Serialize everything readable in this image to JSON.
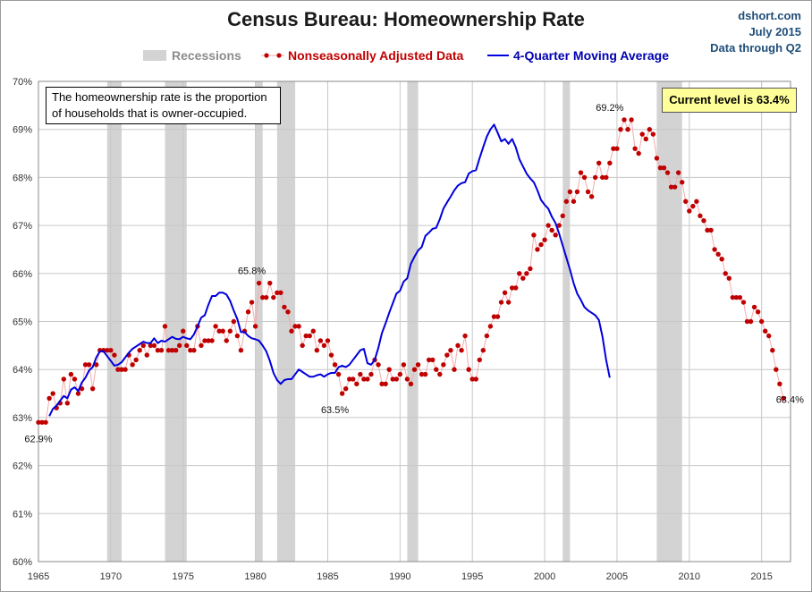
{
  "header": {
    "title": "Census Bureau: Homeownership Rate",
    "source_line1": "dshort.com",
    "source_line2": "July 2015",
    "source_line3": "Data through Q2"
  },
  "legend": {
    "recessions": "Recessions",
    "series_nsa": "Nonseasonally Adjusted Data",
    "series_ma": "4-Quarter Moving Average"
  },
  "annotations": {
    "definition_line1": "The homeownership rate is the proportion",
    "definition_line2": "of households that is owner-occupied.",
    "current_level": "Current level is 63.4%",
    "labels": [
      {
        "text": "62.9%",
        "x": 1965.0,
        "y": 62.9,
        "pos": "below"
      },
      {
        "text": "65.8%",
        "x": 1979.75,
        "y": 65.8,
        "pos": "above"
      },
      {
        "text": "63.5%",
        "x": 1985.5,
        "y": 63.5,
        "pos": "below"
      },
      {
        "text": "69.2%",
        "x": 2004.5,
        "y": 69.2,
        "pos": "above"
      },
      {
        "text": "63.4%",
        "x": 2015.25,
        "y": 63.4,
        "pos": "right"
      }
    ]
  },
  "colors": {
    "nsa": "#c00000",
    "nsa_line": "#f4aaaa",
    "ma": "#0000dd",
    "recession": "#d3d3d3",
    "grid": "#c8c8c8",
    "annotation_bg": "#ffff99",
    "source_text": "#1f4e79"
  },
  "chart_data": {
    "type": "line",
    "title": "Census Bureau: Homeownership Rate",
    "xlabel": "",
    "ylabel": "",
    "xlim": [
      1965,
      2017
    ],
    "ylim": [
      60,
      70
    ],
    "x_ticks": [
      "1965",
      "1970",
      "1975",
      "1980",
      "1985",
      "1990",
      "1995",
      "2000",
      "2005",
      "2010",
      "2015"
    ],
    "y_ticks": [
      "60%",
      "61%",
      "62%",
      "63%",
      "64%",
      "65%",
      "66%",
      "67%",
      "68%",
      "69%",
      "70%"
    ],
    "grid": "both",
    "legend_position": "top",
    "recessions": [
      [
        1969.75,
        1970.75
      ],
      [
        1973.75,
        1975.25
      ],
      [
        1980.0,
        1980.5
      ],
      [
        1981.5,
        1982.75
      ],
      [
        1990.5,
        1991.25
      ],
      [
        2001.25,
        2001.75
      ],
      [
        2007.75,
        2009.5
      ]
    ],
    "series": [
      {
        "name": "Nonseasonally Adjusted Data",
        "start": 1965.0,
        "step": 0.25,
        "values": [
          62.9,
          62.9,
          62.9,
          63.4,
          63.5,
          63.2,
          63.3,
          63.8,
          63.3,
          63.9,
          63.8,
          63.5,
          63.6,
          64.1,
          64.1,
          63.6,
          64.1,
          64.4,
          64.4,
          64.4,
          64.4,
          64.3,
          64.0,
          64.0,
          64.0,
          64.3,
          64.1,
          64.2,
          64.4,
          64.5,
          64.3,
          64.5,
          64.5,
          64.4,
          64.4,
          64.9,
          64.4,
          64.4,
          64.4,
          64.5,
          64.8,
          64.5,
          64.4,
          64.4,
          64.9,
          64.5,
          64.6,
          64.6,
          64.6,
          64.9,
          64.8,
          64.8,
          64.6,
          64.8,
          65.0,
          64.7,
          64.4,
          64.8,
          65.2,
          65.4,
          64.9,
          65.8,
          65.5,
          65.5,
          65.8,
          65.5,
          65.6,
          65.6,
          65.3,
          65.2,
          64.8,
          64.9,
          64.9,
          64.5,
          64.7,
          64.7,
          64.8,
          64.4,
          64.6,
          64.5,
          64.6,
          64.3,
          64.1,
          63.9,
          63.5,
          63.6,
          63.8,
          63.8,
          63.7,
          63.9,
          63.8,
          63.8,
          63.9,
          64.2,
          64.1,
          63.7,
          63.7,
          64.0,
          63.8,
          63.8,
          63.9,
          64.1,
          63.8,
          63.7,
          64.0,
          64.1,
          63.9,
          63.9,
          64.2,
          64.2,
          64.0,
          63.9,
          64.1,
          64.3,
          64.4,
          64.0,
          64.5,
          64.4,
          64.7,
          64.0,
          63.8,
          63.8,
          64.2,
          64.4,
          64.7,
          64.9,
          65.1,
          65.1,
          65.4,
          65.6,
          65.4,
          65.7,
          65.7,
          66.0,
          65.9,
          66.0,
          66.1,
          66.8,
          66.5,
          66.6,
          66.7,
          67.0,
          66.9,
          66.8,
          67.0,
          67.2,
          67.5,
          67.7,
          67.5,
          67.7,
          68.1,
          68.0,
          67.7,
          67.6,
          68.0,
          68.3,
          68.0,
          68.0,
          68.3,
          68.6,
          68.6,
          69.0,
          69.2,
          69.0,
          69.2,
          68.6,
          68.5,
          68.9,
          68.8,
          69.0,
          68.9,
          68.4,
          68.2,
          68.2,
          68.1,
          67.8,
          67.8,
          68.1,
          67.9,
          67.5,
          67.3,
          67.4,
          67.5,
          67.2,
          67.1,
          66.9,
          66.9,
          66.5,
          66.4,
          66.3,
          66.0,
          65.9,
          65.5,
          65.5,
          65.5,
          65.4,
          65.0,
          65.0,
          65.3,
          65.2,
          65.0,
          64.8,
          64.7,
          64.4,
          64.0,
          63.7,
          63.4
        ]
      },
      {
        "name": "4-Quarter Moving Average",
        "start": 1965.75,
        "step": 0.25,
        "values": [
          63.03,
          63.18,
          63.25,
          63.35,
          63.45,
          63.4,
          63.58,
          63.63,
          63.55,
          63.73,
          63.83,
          63.98,
          64.05,
          64.25,
          64.38,
          64.38,
          64.28,
          64.18,
          64.08,
          64.1,
          64.15,
          64.25,
          64.35,
          64.43,
          64.48,
          64.53,
          64.58,
          64.55,
          64.55,
          64.65,
          64.55,
          64.6,
          64.58,
          64.63,
          64.68,
          64.64,
          64.63,
          64.68,
          64.65,
          64.63,
          64.73,
          64.9,
          65.08,
          65.13,
          65.35,
          65.53,
          65.53,
          65.6,
          65.6,
          65.56,
          65.43,
          65.23,
          65.05,
          64.78,
          64.78,
          64.7,
          64.65,
          64.63,
          64.6,
          64.5,
          64.38,
          64.18,
          63.93,
          63.78,
          63.7,
          63.78,
          63.8,
          63.8,
          63.9,
          64.0,
          63.95,
          63.9,
          63.85,
          63.85,
          63.88,
          63.9,
          63.85,
          63.9,
          63.93,
          63.93,
          64.05,
          64.08,
          64.05,
          64.1,
          64.2,
          64.3,
          64.4,
          64.43,
          64.13,
          64.1,
          64.2,
          64.45,
          64.76,
          64.96,
          65.18,
          65.38,
          65.58,
          65.64,
          65.83,
          65.9,
          66.2,
          66.35,
          66.48,
          66.55,
          66.78,
          66.85,
          66.93,
          66.95,
          67.13,
          67.35,
          67.48,
          67.6,
          67.73,
          67.83,
          67.88,
          67.9,
          68.08,
          68.13,
          68.15,
          68.4,
          68.63,
          68.85,
          69.0,
          69.1,
          68.93,
          68.75,
          68.8,
          68.7,
          68.8,
          68.63,
          68.38,
          68.23,
          68.08,
          67.98,
          67.9,
          67.73,
          67.53,
          67.43,
          67.35,
          67.18,
          67.05,
          66.83,
          66.58,
          66.33,
          66.08,
          65.8,
          65.58,
          65.45,
          65.3,
          65.23,
          65.18,
          65.13,
          65.03,
          64.68,
          64.2,
          63.83
        ]
      }
    ]
  }
}
